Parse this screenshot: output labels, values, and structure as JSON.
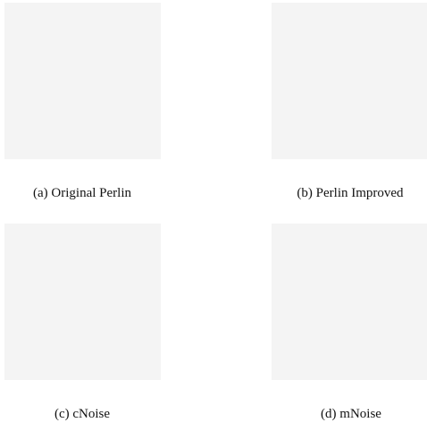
{
  "figure": {
    "panels": [
      {
        "caption": "(a) Original Perlin"
      },
      {
        "caption": "(b) Perlin Improved"
      },
      {
        "caption": "(c) cNoise"
      },
      {
        "caption": "(d) mNoise"
      }
    ]
  }
}
